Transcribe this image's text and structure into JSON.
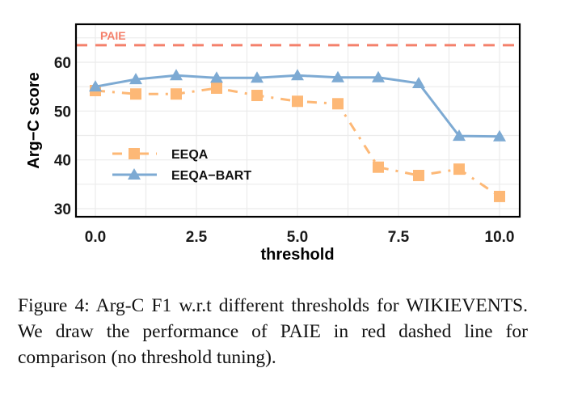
{
  "chart_data": {
    "type": "line",
    "title": "",
    "xlabel": "threshold",
    "ylabel": "Arg−C score",
    "xlim": [
      -0.5,
      10.5
    ],
    "ylim": [
      28.5,
      68
    ],
    "x_ticks": [
      0,
      2.5,
      5,
      7.5,
      10
    ],
    "x_tick_labels": [
      "0.0",
      "2.5",
      "5.0",
      "7.5",
      "10.0"
    ],
    "y_ticks": [
      30,
      40,
      50,
      60
    ],
    "y_tick_labels": [
      "30",
      "40",
      "50",
      "60"
    ],
    "grid": true,
    "legend_position": "center-left",
    "x": [
      0,
      1,
      2,
      3,
      4,
      5,
      6,
      7,
      8,
      9,
      10
    ],
    "series": [
      {
        "name": "EEQA",
        "values": [
          54.2,
          53.5,
          53.5,
          54.7,
          53.2,
          52.0,
          51.5,
          38.5,
          36.8,
          38.1,
          32.5
        ],
        "color": "#FDB876",
        "line_style": "dash-dot",
        "marker": "square"
      },
      {
        "name": "EEQA−BART",
        "values": [
          55.0,
          56.5,
          57.3,
          56.8,
          56.8,
          57.3,
          56.9,
          56.9,
          55.7,
          44.9,
          44.8
        ],
        "color": "#7DAAD3",
        "line_style": "solid",
        "marker": "triangle"
      }
    ],
    "reference_lines": [
      {
        "name": "PAIE",
        "y": 63.5,
        "color": "#F4806B",
        "line_style": "dashed",
        "label": "PAIE"
      }
    ]
  },
  "caption": {
    "text": "Figure 4:  Arg-C F1 w.r.t different thresholds for WIKIEVENTS. We draw the performance of PAIE in red dashed line for comparison (no threshold tuning)."
  }
}
